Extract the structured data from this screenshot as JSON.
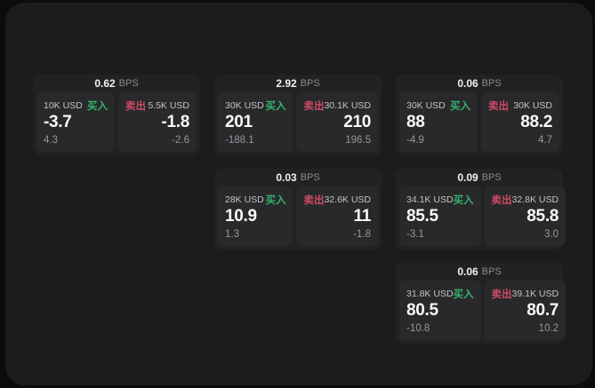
{
  "labels": {
    "buy": "买入",
    "sell": "卖出",
    "bps_unit": "BPS"
  },
  "colors": {
    "buy_accent": "#35b46b",
    "sell_accent": "#cf4a66",
    "outer_bg": "#0c0c0d",
    "panel_bg": "#1c1c1e",
    "card_bg": "#222224",
    "subpanel_bg": "#29292c"
  },
  "cards": [
    {
      "col": 1,
      "row": 1,
      "bps": "0.62",
      "buy": {
        "amount": "10K USD",
        "value": "-3.7",
        "delta": "4.3"
      },
      "sell": {
        "amount": "5.5K USD",
        "value": "-1.8",
        "delta": "-2.6"
      }
    },
    {
      "col": 2,
      "row": 1,
      "bps": "2.92",
      "buy": {
        "amount": "30K USD",
        "value": "201",
        "delta": "-188.1"
      },
      "sell": {
        "amount": "30.1K USD",
        "value": "210",
        "delta": "196.5"
      }
    },
    {
      "col": 3,
      "row": 1,
      "bps": "0.06",
      "buy": {
        "amount": "30K USD",
        "value": "88",
        "delta": "-4.9"
      },
      "sell": {
        "amount": "30K USD",
        "value": "88.2",
        "delta": "4.7"
      }
    },
    {
      "col": 2,
      "row": 2,
      "bps": "0.03",
      "buy": {
        "amount": "28K USD",
        "value": "10.9",
        "delta": "1.3"
      },
      "sell": {
        "amount": "32.6K USD",
        "value": "11",
        "delta": "-1.8"
      }
    },
    {
      "col": 3,
      "row": 2,
      "bps": "0.09",
      "buy": {
        "amount": "34.1K USD",
        "value": "85.5",
        "delta": "-3.1"
      },
      "sell": {
        "amount": "32.8K USD",
        "value": "85.8",
        "delta": "3.0"
      }
    },
    {
      "col": 3,
      "row": 3,
      "bps": "0.06",
      "buy": {
        "amount": "31.8K USD",
        "value": "80.5",
        "delta": "-10.8"
      },
      "sell": {
        "amount": "39.1K USD",
        "value": "80.7",
        "delta": "10.2"
      }
    }
  ]
}
